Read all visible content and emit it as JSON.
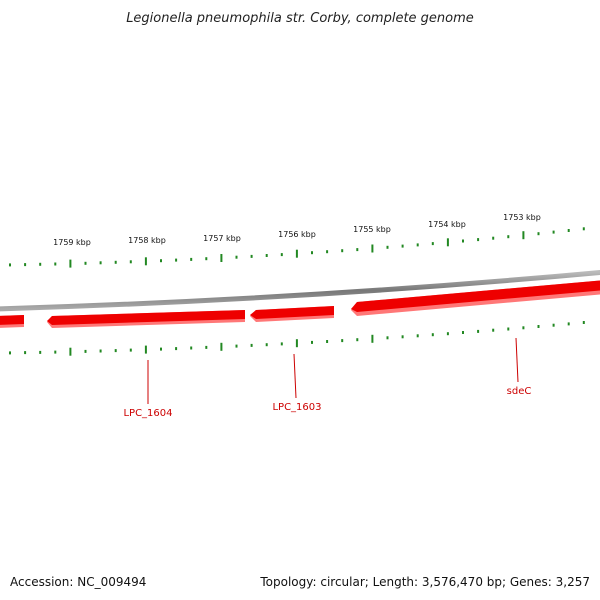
{
  "title": "Legionella pneumophila str. Corby, complete genome",
  "footer": {
    "accession": "Accession: NC_009494",
    "summary": "Topology: circular; Length: 3,576,470 bp; Genes: 3,257"
  },
  "ticks": [
    "1759 kbp",
    "1758 kbp",
    "1757 kbp",
    "1756 kbp",
    "1755 kbp",
    "1754 kbp",
    "1753 kbp"
  ],
  "genes": [
    {
      "name": "LPC_1604"
    },
    {
      "name": "LPC_1603"
    },
    {
      "name": "sdeC"
    }
  ],
  "colors": {
    "backbone": "#888888",
    "gene_fill": "#ee0000",
    "gene_shadow": "#ff7777",
    "tick": "#228822",
    "gene_label": "#cc0000"
  }
}
